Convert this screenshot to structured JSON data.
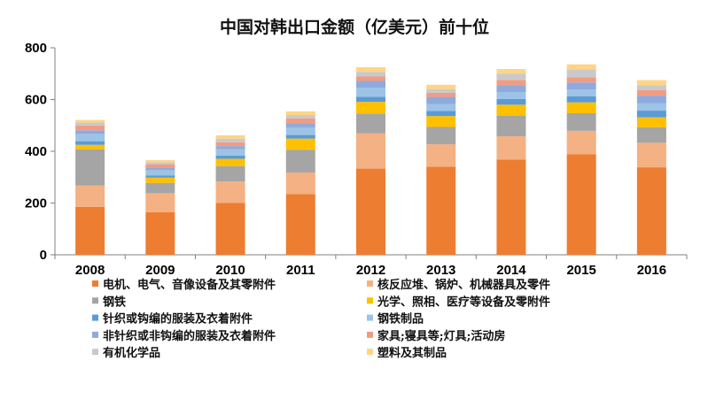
{
  "chart_data": {
    "type": "bar",
    "stacked": true,
    "title": "中国对韩出口金额（亿美元）前十位",
    "xlabel": "",
    "ylabel": "",
    "ylim": [
      0,
      800
    ],
    "yticks": [
      0,
      200,
      400,
      600,
      800
    ],
    "grid": false,
    "legend_position": "bottom",
    "categories": [
      "2008",
      "2009",
      "2010",
      "2011",
      "2012",
      "2013",
      "2014",
      "2015",
      "2016"
    ],
    "series": [
      {
        "name": "电机、电气、音像设备及其零附件",
        "color": "#ED7D31",
        "values": [
          185,
          165,
          200,
          235,
          333,
          340,
          368,
          388,
          338
        ]
      },
      {
        "name": "核反应堆、锅炉、机械器具及零件",
        "color": "#F4B183",
        "values": [
          83,
          73,
          83,
          83,
          137,
          87,
          90,
          91,
          95
        ]
      },
      {
        "name": "钢铁",
        "color": "#A5A5A5",
        "values": [
          140,
          40,
          60,
          88,
          76,
          67,
          80,
          68,
          60
        ]
      },
      {
        "name": "光学、照相、医疗等设备及零附件",
        "color": "#FFC000",
        "values": [
          17,
          20,
          28,
          43,
          45,
          42,
          42,
          42,
          38
        ]
      },
      {
        "name": "针织或钩编的服装及衣着附件",
        "color": "#5B9BD5",
        "values": [
          14,
          9,
          12,
          14,
          20,
          20,
          22,
          23,
          26
        ]
      },
      {
        "name": "钢铁制品",
        "color": "#9DC3E6",
        "values": [
          28,
          20,
          25,
          28,
          35,
          27,
          27,
          27,
          28
        ]
      },
      {
        "name": "非针织或非钩编的服装及衣着附件",
        "color": "#8FAADC",
        "values": [
          14,
          10,
          12,
          17,
          26,
          27,
          27,
          27,
          30
        ]
      },
      {
        "name": "家具;寝具等;灯具;活动房",
        "color": "#F19C82",
        "values": [
          18,
          13,
          15,
          19,
          17,
          16,
          20,
          20,
          22
        ]
      },
      {
        "name": "有机化学品",
        "color": "#C9C9C9",
        "values": [
          12,
          8,
          14,
          13,
          18,
          14,
          24,
          30,
          18
        ]
      },
      {
        "name": "塑料及其制品",
        "color": "#FFD485",
        "values": [
          10,
          8,
          13,
          14,
          18,
          17,
          18,
          20,
          20
        ]
      }
    ]
  }
}
